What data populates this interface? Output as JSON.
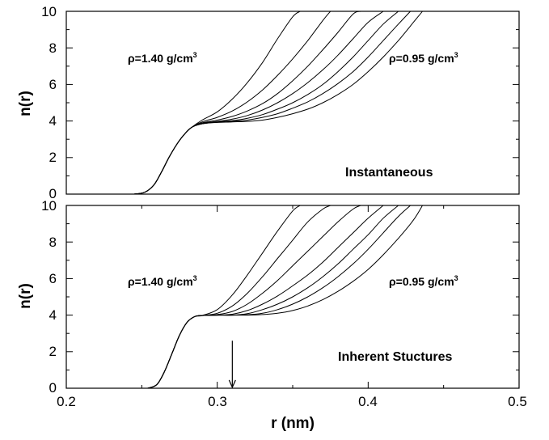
{
  "chart_data": [
    {
      "type": "line",
      "panel_label": "Instantaneous",
      "ylabel": "n(r)",
      "xlabel": "",
      "xlim": [
        0.2,
        0.5
      ],
      "ylim": [
        0,
        10
      ],
      "yticks": [
        "0",
        "2",
        "4",
        "6",
        "8",
        "10"
      ],
      "xticks": [],
      "annotations": [
        {
          "text": "ρ=1.40 g/cm",
          "sup": "3"
        },
        {
          "text": "ρ=0.95 g/cm",
          "sup": "3"
        }
      ],
      "series": [
        {
          "x": [
            0.245,
            0.252,
            0.258,
            0.263,
            0.268,
            0.273,
            0.278,
            0.283,
            0.29,
            0.3,
            0.31,
            0.32,
            0.33,
            0.34,
            0.35,
            0.355
          ],
          "values": [
            0,
            0.1,
            0.5,
            1.2,
            2.0,
            2.7,
            3.25,
            3.65,
            4.05,
            4.5,
            5.2,
            6.1,
            7.2,
            8.5,
            9.7,
            10
          ]
        },
        {
          "x": [
            0.245,
            0.252,
            0.258,
            0.263,
            0.268,
            0.273,
            0.278,
            0.283,
            0.29,
            0.3,
            0.31,
            0.32,
            0.33,
            0.34,
            0.35,
            0.36,
            0.37,
            0.375
          ],
          "values": [
            0,
            0.1,
            0.5,
            1.2,
            2.0,
            2.7,
            3.25,
            3.65,
            3.95,
            4.2,
            4.55,
            5.05,
            5.7,
            6.5,
            7.4,
            8.4,
            9.5,
            10
          ]
        },
        {
          "x": [
            0.245,
            0.252,
            0.258,
            0.263,
            0.268,
            0.273,
            0.278,
            0.283,
            0.29,
            0.3,
            0.31,
            0.32,
            0.33,
            0.34,
            0.35,
            0.36,
            0.37,
            0.38,
            0.39,
            0.395
          ],
          "values": [
            0,
            0.1,
            0.5,
            1.2,
            2.0,
            2.7,
            3.25,
            3.65,
            3.9,
            4.05,
            4.25,
            4.55,
            4.95,
            5.5,
            6.2,
            7.0,
            7.9,
            8.85,
            9.85,
            10
          ]
        },
        {
          "x": [
            0.245,
            0.252,
            0.258,
            0.263,
            0.268,
            0.273,
            0.278,
            0.283,
            0.29,
            0.3,
            0.31,
            0.32,
            0.33,
            0.34,
            0.35,
            0.36,
            0.37,
            0.38,
            0.39,
            0.4,
            0.41
          ],
          "values": [
            0,
            0.1,
            0.5,
            1.2,
            2.0,
            2.7,
            3.25,
            3.65,
            3.88,
            3.98,
            4.1,
            4.3,
            4.6,
            5.0,
            5.5,
            6.1,
            6.8,
            7.6,
            8.5,
            9.4,
            10
          ]
        },
        {
          "x": [
            0.245,
            0.252,
            0.258,
            0.263,
            0.268,
            0.273,
            0.278,
            0.283,
            0.29,
            0.3,
            0.31,
            0.32,
            0.33,
            0.34,
            0.35,
            0.36,
            0.37,
            0.38,
            0.39,
            0.4,
            0.41,
            0.42
          ],
          "values": [
            0,
            0.1,
            0.5,
            1.2,
            2.0,
            2.7,
            3.25,
            3.65,
            3.85,
            3.95,
            4.02,
            4.15,
            4.35,
            4.65,
            5.0,
            5.45,
            6.0,
            6.7,
            7.5,
            8.4,
            9.3,
            10
          ]
        },
        {
          "x": [
            0.245,
            0.252,
            0.258,
            0.263,
            0.268,
            0.273,
            0.278,
            0.283,
            0.29,
            0.3,
            0.31,
            0.32,
            0.33,
            0.34,
            0.35,
            0.36,
            0.37,
            0.38,
            0.39,
            0.4,
            0.41,
            0.42,
            0.428
          ],
          "values": [
            0,
            0.1,
            0.5,
            1.2,
            2.0,
            2.7,
            3.25,
            3.65,
            3.85,
            3.93,
            3.98,
            4.05,
            4.2,
            4.4,
            4.7,
            5.05,
            5.5,
            6.05,
            6.7,
            7.5,
            8.4,
            9.3,
            10
          ]
        },
        {
          "x": [
            0.245,
            0.252,
            0.258,
            0.263,
            0.268,
            0.273,
            0.278,
            0.283,
            0.29,
            0.3,
            0.31,
            0.32,
            0.33,
            0.34,
            0.35,
            0.36,
            0.37,
            0.38,
            0.39,
            0.4,
            0.41,
            0.42,
            0.43,
            0.436
          ],
          "values": [
            0,
            0.1,
            0.5,
            1.2,
            2.0,
            2.7,
            3.25,
            3.65,
            3.85,
            3.92,
            3.95,
            3.98,
            4.05,
            4.2,
            4.4,
            4.65,
            5.0,
            5.45,
            6.0,
            6.7,
            7.5,
            8.4,
            9.4,
            10
          ]
        }
      ]
    },
    {
      "type": "line",
      "panel_label": "Inherent Stuctures",
      "ylabel": "n(r)",
      "xlabel": "r (nm)",
      "xlim": [
        0.2,
        0.5
      ],
      "ylim": [
        0,
        10
      ],
      "yticks": [
        "0",
        "2",
        "4",
        "6",
        "8",
        "10"
      ],
      "xticks": [
        "0.2",
        "0.3",
        "0.4",
        "0.5"
      ],
      "annotations": [
        {
          "text": "ρ=1.40 g/cm",
          "sup": "3"
        },
        {
          "text": "ρ=0.95 g/cm",
          "sup": "3"
        }
      ],
      "arrow_x": 0.31,
      "series": [
        {
          "x": [
            0.254,
            0.26,
            0.265,
            0.27,
            0.275,
            0.28,
            0.285,
            0.29,
            0.3,
            0.31,
            0.32,
            0.33,
            0.34,
            0.35,
            0.355
          ],
          "values": [
            0,
            0.2,
            0.9,
            1.9,
            2.9,
            3.6,
            3.92,
            3.98,
            4.3,
            5.1,
            6.2,
            7.4,
            8.6,
            9.7,
            10
          ]
        },
        {
          "x": [
            0.254,
            0.26,
            0.265,
            0.27,
            0.275,
            0.28,
            0.285,
            0.29,
            0.3,
            0.31,
            0.32,
            0.33,
            0.34,
            0.35,
            0.36,
            0.37,
            0.375
          ],
          "values": [
            0,
            0.2,
            0.9,
            1.9,
            2.9,
            3.6,
            3.92,
            3.98,
            4.1,
            4.5,
            5.2,
            6.1,
            7.1,
            8.1,
            9.1,
            9.8,
            10
          ]
        },
        {
          "x": [
            0.254,
            0.26,
            0.265,
            0.27,
            0.275,
            0.28,
            0.285,
            0.29,
            0.3,
            0.31,
            0.32,
            0.33,
            0.34,
            0.35,
            0.36,
            0.37,
            0.38,
            0.39,
            0.395
          ],
          "values": [
            0,
            0.2,
            0.9,
            1.9,
            2.9,
            3.6,
            3.92,
            3.98,
            4.03,
            4.2,
            4.6,
            5.2,
            5.9,
            6.7,
            7.5,
            8.3,
            9.1,
            9.8,
            10
          ]
        },
        {
          "x": [
            0.254,
            0.26,
            0.265,
            0.27,
            0.275,
            0.28,
            0.285,
            0.29,
            0.3,
            0.31,
            0.32,
            0.33,
            0.34,
            0.35,
            0.36,
            0.37,
            0.38,
            0.39,
            0.4,
            0.41
          ],
          "values": [
            0,
            0.2,
            0.9,
            1.9,
            2.9,
            3.6,
            3.92,
            3.98,
            4.0,
            4.05,
            4.25,
            4.6,
            5.05,
            5.6,
            6.2,
            6.9,
            7.7,
            8.5,
            9.3,
            10
          ]
        },
        {
          "x": [
            0.254,
            0.26,
            0.265,
            0.27,
            0.275,
            0.28,
            0.285,
            0.29,
            0.3,
            0.31,
            0.32,
            0.33,
            0.34,
            0.35,
            0.36,
            0.37,
            0.38,
            0.39,
            0.4,
            0.41,
            0.42
          ],
          "values": [
            0,
            0.2,
            0.9,
            1.9,
            2.9,
            3.6,
            3.92,
            3.98,
            4.0,
            4.0,
            4.08,
            4.3,
            4.6,
            5.0,
            5.5,
            6.1,
            6.8,
            7.6,
            8.4,
            9.3,
            10
          ]
        },
        {
          "x": [
            0.254,
            0.26,
            0.265,
            0.27,
            0.275,
            0.28,
            0.285,
            0.29,
            0.3,
            0.31,
            0.32,
            0.33,
            0.34,
            0.35,
            0.36,
            0.37,
            0.38,
            0.39,
            0.4,
            0.41,
            0.42,
            0.428
          ],
          "values": [
            0,
            0.2,
            0.9,
            1.9,
            2.9,
            3.6,
            3.92,
            3.98,
            4.0,
            4.0,
            4.02,
            4.1,
            4.3,
            4.6,
            5.0,
            5.5,
            6.1,
            6.8,
            7.6,
            8.5,
            9.4,
            10
          ]
        },
        {
          "x": [
            0.254,
            0.26,
            0.265,
            0.27,
            0.275,
            0.28,
            0.285,
            0.29,
            0.3,
            0.31,
            0.32,
            0.33,
            0.34,
            0.35,
            0.36,
            0.37,
            0.38,
            0.39,
            0.4,
            0.41,
            0.42,
            0.43,
            0.436
          ],
          "values": [
            0,
            0.2,
            0.9,
            1.9,
            2.9,
            3.6,
            3.92,
            3.98,
            4.0,
            4.0,
            4.0,
            4.03,
            4.1,
            4.25,
            4.5,
            4.85,
            5.3,
            5.85,
            6.5,
            7.3,
            8.2,
            9.2,
            10
          ]
        }
      ]
    }
  ]
}
